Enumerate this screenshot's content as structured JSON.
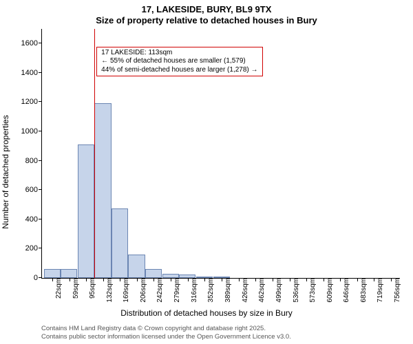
{
  "chart": {
    "type": "histogram",
    "title_line1": "17, LAKESIDE, BURY, BL9 9TX",
    "title_line2": "Size of property relative to detached houses in Bury",
    "title_fontsize": 13,
    "ylabel": "Number of detached properties",
    "xlabel": "Distribution of detached houses by size in Bury",
    "label_fontsize": 12,
    "tick_fontsize": 11,
    "background_color": "#ffffff",
    "bar_fill": "#c6d4ea",
    "bar_border": "#6b85b2",
    "marker_line_color": "#d00000",
    "annotation_border": "#d00000",
    "ylim": [
      0,
      1700
    ],
    "yticks": [
      0,
      200,
      400,
      600,
      800,
      1000,
      1200,
      1400,
      1600
    ],
    "x_range": [
      0,
      775
    ],
    "xtick_labels": [
      "22sqm",
      "59sqm",
      "95sqm",
      "132sqm",
      "169sqm",
      "206sqm",
      "242sqm",
      "279sqm",
      "316sqm",
      "352sqm",
      "389sqm",
      "426sqm",
      "462sqm",
      "499sqm",
      "536sqm",
      "573sqm",
      "609sqm",
      "646sqm",
      "683sqm",
      "719sqm",
      "756sqm"
    ],
    "xtick_positions": [
      22,
      59,
      95,
      132,
      169,
      206,
      242,
      279,
      316,
      352,
      389,
      426,
      462,
      499,
      536,
      573,
      609,
      646,
      683,
      719,
      756
    ],
    "bar_width_sqm": 36,
    "bars": [
      {
        "left": 4,
        "value": 60
      },
      {
        "left": 40,
        "value": 60
      },
      {
        "left": 77,
        "value": 910
      },
      {
        "left": 114,
        "value": 1195
      },
      {
        "left": 150,
        "value": 475
      },
      {
        "left": 187,
        "value": 160
      },
      {
        "left": 224,
        "value": 60
      },
      {
        "left": 261,
        "value": 30
      },
      {
        "left": 297,
        "value": 22
      },
      {
        "left": 334,
        "value": 10
      },
      {
        "left": 371,
        "value": 8
      }
    ],
    "marker_x": 113,
    "annotation": {
      "line1": "17 LAKESIDE: 113sqm",
      "line2": "← 55% of detached houses are smaller (1,579)",
      "line3": "44% of semi-detached houses are larger (1,278) →",
      "x": 118,
      "y_top": 1580
    }
  },
  "footer": {
    "line1": "Contains HM Land Registry data © Crown copyright and database right 2025.",
    "line2": "Contains public sector information licensed under the Open Government Licence v3.0."
  }
}
